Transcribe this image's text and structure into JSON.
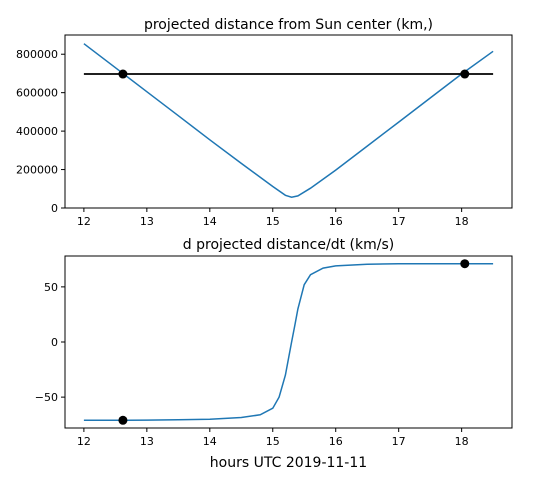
{
  "chart_data": [
    {
      "type": "line",
      "title": "projected distance from Sun center (km,)",
      "xlabel": "",
      "ylabel": "",
      "xlim": [
        11.7,
        18.8
      ],
      "ylim": [
        0,
        900000
      ],
      "xticks": [
        12,
        13,
        14,
        15,
        16,
        17,
        18
      ],
      "xtick_labels": [
        "12",
        "13",
        "14",
        "15",
        "16",
        "17",
        "18"
      ],
      "yticks": [
        0,
        200000,
        400000,
        600000,
        800000
      ],
      "ytick_labels": [
        "0",
        "200000",
        "400000",
        "600000",
        "800000"
      ],
      "grid": false,
      "series": [
        {
          "color": "#1f77b4",
          "x": [
            12.0,
            12.5,
            13.0,
            13.5,
            14.0,
            14.5,
            15.0,
            15.2,
            15.3,
            15.4,
            15.6,
            16.0,
            16.5,
            17.0,
            17.5,
            18.0,
            18.5
          ],
          "y": [
            855000,
            730000,
            605000,
            480000,
            355000,
            232000,
            112000,
            66000,
            56000,
            63000,
            103000,
            197000,
            322000,
            447000,
            572000,
            697000,
            815000
          ]
        }
      ],
      "reference_line": {
        "color": "#000000",
        "x": [
          12.0,
          18.5
        ],
        "y": [
          697000,
          697000
        ]
      },
      "markers": [
        {
          "x": 12.62,
          "y": 697000
        },
        {
          "x": 18.05,
          "y": 697000
        }
      ]
    },
    {
      "type": "line",
      "title": "d projected distance/dt (km/s)",
      "xlabel": "hours UTC 2019-11-11",
      "ylabel": "",
      "xlim": [
        11.7,
        18.8
      ],
      "ylim": [
        -78,
        78
      ],
      "xticks": [
        12,
        13,
        14,
        15,
        16,
        17,
        18
      ],
      "xtick_labels": [
        "12",
        "13",
        "14",
        "15",
        "16",
        "17",
        "18"
      ],
      "yticks": [
        -50,
        0,
        50
      ],
      "ytick_labels": [
        "−50",
        "0",
        "50"
      ],
      "grid": false,
      "series": [
        {
          "color": "#1f77b4",
          "x": [
            12.0,
            12.5,
            13.0,
            13.5,
            14.0,
            14.5,
            14.8,
            15.0,
            15.1,
            15.2,
            15.25,
            15.3,
            15.35,
            15.4,
            15.5,
            15.6,
            15.8,
            16.0,
            16.5,
            17.0,
            17.5,
            18.0,
            18.5
          ],
          "y": [
            -71,
            -71,
            -70.8,
            -70.5,
            -70,
            -68.5,
            -66,
            -60,
            -50,
            -30,
            -15,
            0,
            15,
            30,
            52,
            61,
            67,
            69,
            70.5,
            71,
            71,
            71,
            71
          ]
        }
      ],
      "markers": [
        {
          "x": 12.62,
          "y": -71
        },
        {
          "x": 18.05,
          "y": 71
        }
      ]
    }
  ]
}
